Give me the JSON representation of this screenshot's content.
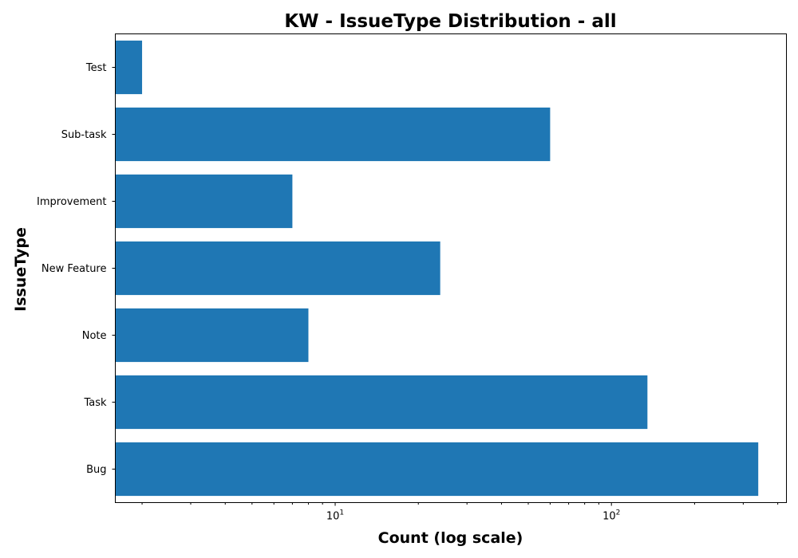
{
  "chart_data": {
    "type": "bar",
    "orientation": "horizontal",
    "title": "KW - IssueType Distribution - all",
    "xlabel": "Count (log scale)",
    "ylabel": "IssueType",
    "x_scale": "log",
    "xlim": [
      1.6,
      430
    ],
    "x_ticks": [
      {
        "value": 10,
        "base": "10",
        "exp": "1"
      },
      {
        "value": 100,
        "base": "10",
        "exp": "2"
      }
    ],
    "x_minor_ticks": [
      2,
      3,
      4,
      5,
      6,
      7,
      8,
      9,
      20,
      30,
      40,
      50,
      60,
      70,
      80,
      90,
      200,
      300,
      400
    ],
    "categories": [
      "Bug",
      "Task",
      "Note",
      "New Feature",
      "Improvement",
      "Sub-task",
      "Test"
    ],
    "values": [
      340,
      135,
      8,
      24,
      7,
      60,
      2
    ],
    "bar_color": "#1f77b4",
    "grid": false
  }
}
